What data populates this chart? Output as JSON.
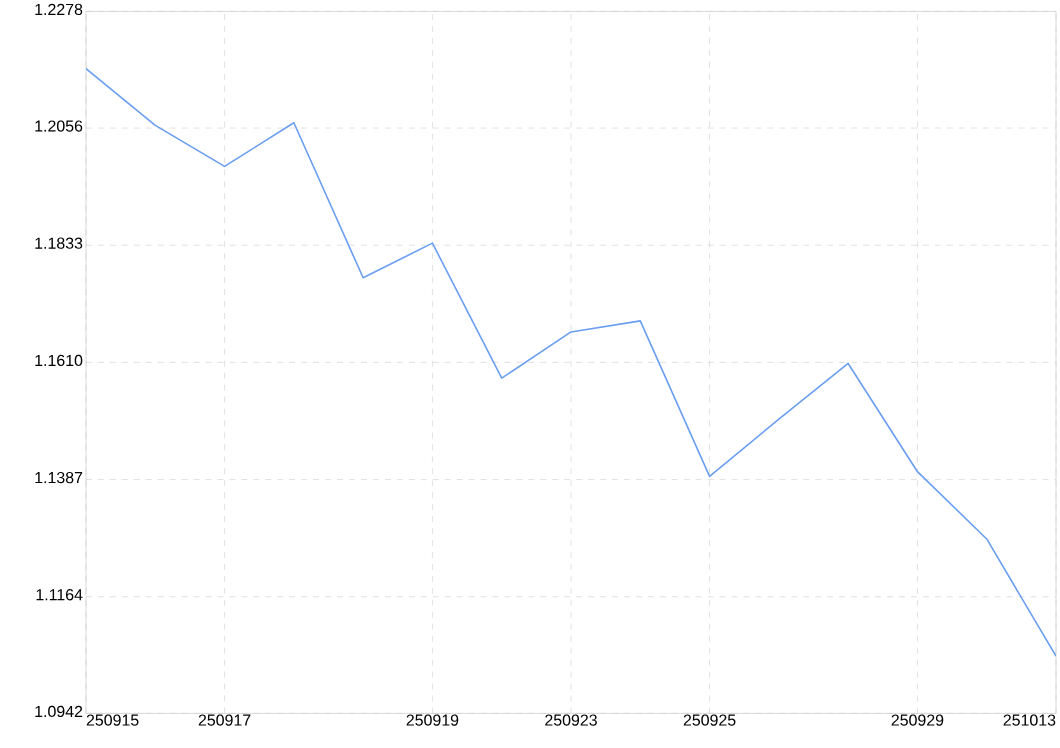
{
  "chart_data": {
    "type": "line",
    "categories": [
      "250915",
      null,
      "250917",
      null,
      null,
      "250919",
      null,
      "250923",
      null,
      "250925",
      null,
      null,
      "250929",
      null,
      "251013"
    ],
    "series": [
      {
        "color": "#6a9ef0",
        "values": [
          1.2169,
          1.2061,
          1.1983,
          1.2066,
          1.1771,
          1.1837,
          1.158,
          1.1668,
          1.1689,
          1.1393,
          1.1502,
          1.1608,
          1.1402,
          1.1274,
          1.1051
        ]
      }
    ],
    "ylim": [
      1.0942,
      1.2278
    ],
    "yticks": [
      1.0942,
      1.1164,
      1.1387,
      {
        "value": 1.161,
        "label": "1.1610"
      },
      1.1833,
      1.2056,
      1.2278
    ],
    "grid": true,
    "marker": "none",
    "line_style": "solid"
  }
}
